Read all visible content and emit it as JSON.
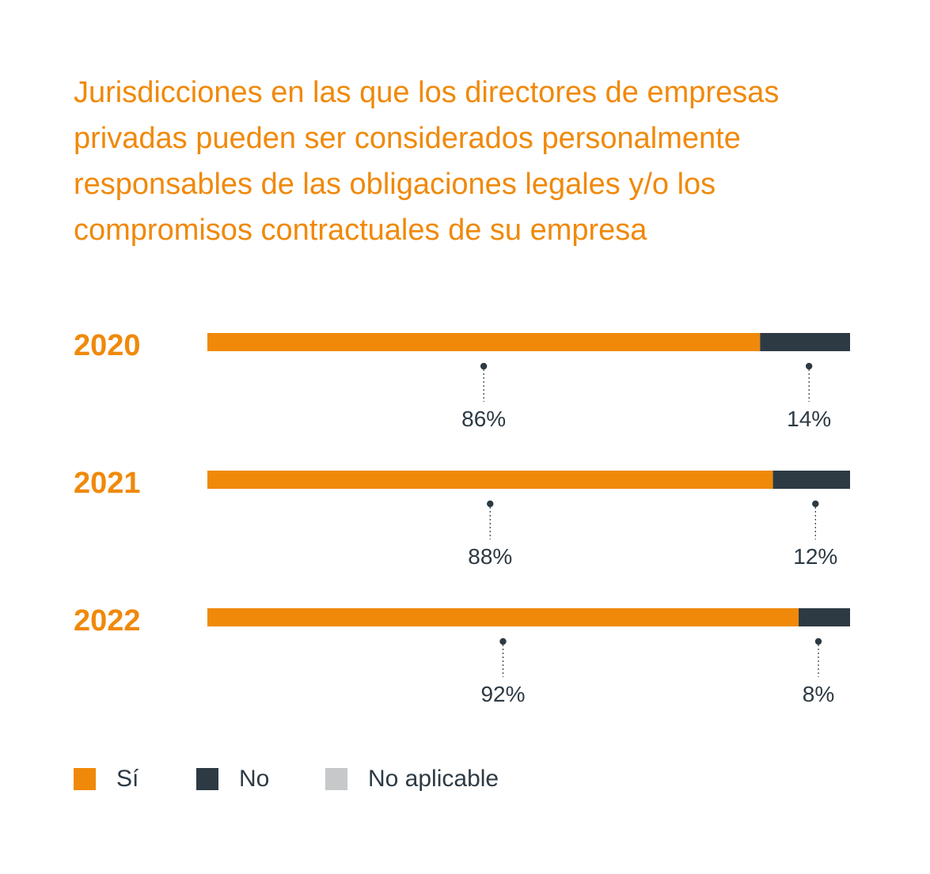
{
  "chart_data": {
    "type": "bar",
    "orientation": "horizontal",
    "stacked": true,
    "title": "Jurisdicciones en las que los directores de empresas privadas pueden ser considerados personalmente responsables de las obligaciones legales y/o los compromisos contractuales de su empresa",
    "categories": [
      "2020",
      "2021",
      "2022"
    ],
    "series": [
      {
        "name": "Sí",
        "color": "#f0890a",
        "values": [
          86,
          88,
          92
        ],
        "labels": [
          "86%",
          "88%",
          "92%"
        ]
      },
      {
        "name": "No",
        "color": "#2d3a44",
        "values": [
          14,
          12,
          8
        ],
        "labels": [
          "14%",
          "12%",
          "8%"
        ]
      },
      {
        "name": "No aplicable",
        "color": "#c6c8ca",
        "values": [
          0,
          0,
          0
        ],
        "labels": [
          "",
          "",
          ""
        ]
      }
    ],
    "xlim": [
      0,
      100
    ],
    "legend_position": "bottom-left",
    "grid": false
  },
  "colors": {
    "title": "#f0890a",
    "year_label": "#f0890a",
    "value_label": "#2d3a44",
    "connector": "#2d3a44"
  }
}
